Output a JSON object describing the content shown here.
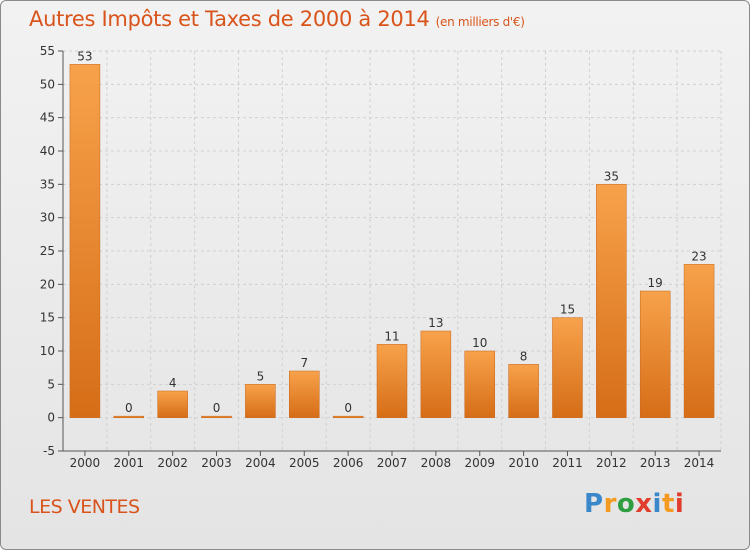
{
  "header": {
    "title": "Autres Impôts et Taxes de 2000 à 2014",
    "unit": "(en milliers d'€)"
  },
  "commune": "LES VENTES",
  "brand": {
    "letters": [
      "P",
      "r",
      "o",
      "x",
      "i",
      "t",
      "i"
    ]
  },
  "colors": {
    "title": "#d9541b",
    "bar_light": "#f7a24b",
    "bar_dark": "#d66d17"
  },
  "chart_data": {
    "type": "bar",
    "title": "Autres Impôts et Taxes de 2000 à 2014",
    "subtitle": "(en milliers d'€)",
    "categories": [
      "2000",
      "2001",
      "2002",
      "2003",
      "2004",
      "2005",
      "2006",
      "2007",
      "2008",
      "2009",
      "2010",
      "2011",
      "2012",
      "2013",
      "2014"
    ],
    "values": [
      53,
      0,
      4,
      0,
      5,
      7,
      0,
      11,
      13,
      10,
      8,
      15,
      35,
      19,
      23
    ],
    "xlabel": "",
    "ylabel": "",
    "ylim": [
      -5,
      55
    ],
    "yticks": [
      -5,
      0,
      5,
      10,
      15,
      20,
      25,
      30,
      35,
      40,
      45,
      50,
      55
    ],
    "grid": true,
    "legend": "none"
  }
}
